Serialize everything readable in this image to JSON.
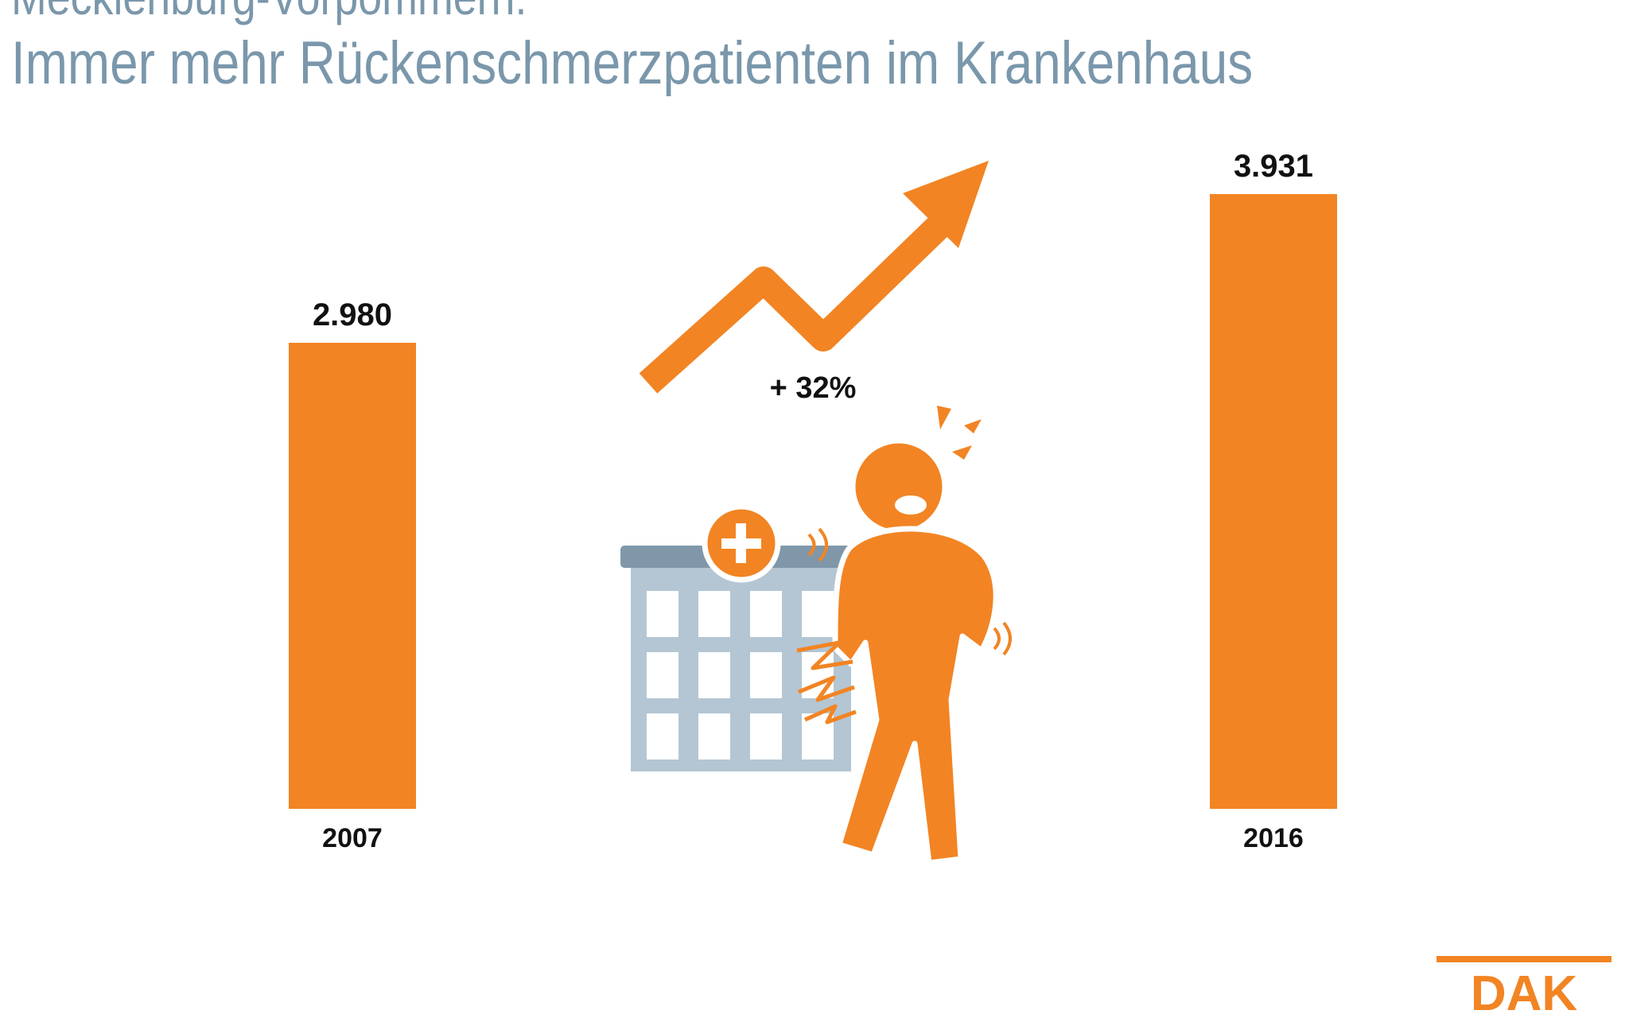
{
  "header": {
    "region": "Mecklenburg-Vorpommern:",
    "title": "Immer mehr Rückenschmerzpatienten im Krankenhaus"
  },
  "chart_data": {
    "type": "bar",
    "categories": [
      "2007",
      "2016"
    ],
    "values": [
      2980,
      3931
    ],
    "value_labels": [
      "2.980",
      "3.931"
    ],
    "annotation": "+ 32%",
    "ylim": [
      0,
      3931
    ],
    "grid": false,
    "legend": "none"
  },
  "logo": {
    "text": "DAK"
  },
  "colors": {
    "bar": "#f28423",
    "title": "#7a97ab",
    "building": "#b4c6d3",
    "building_roof": "#7f97a9",
    "text": "#111111"
  },
  "icons": [
    "trend-arrow-icon",
    "hospital-icon",
    "back-pain-person-icon"
  ]
}
